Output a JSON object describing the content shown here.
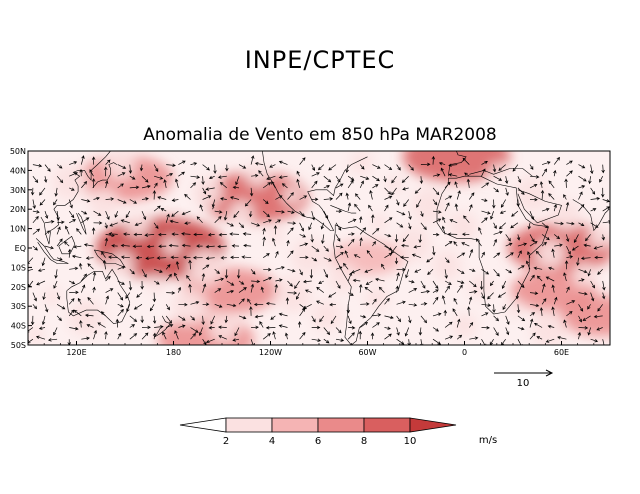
{
  "header": {
    "institution": "INPE/CPTEC",
    "title": "Anomalia de Vento em 850 hPa MAR2008"
  },
  "map": {
    "lat_labels": [
      "50N",
      "40N",
      "30N",
      "20N",
      "10N",
      "EQ",
      "10S",
      "20S",
      "30S",
      "40S",
      "50S"
    ],
    "lon_labels": [
      "120E",
      "180",
      "120W",
      "60W",
      "0",
      "60E"
    ],
    "lon_range_deg_east": [
      90,
      450
    ],
    "lat_range": [
      -50,
      50
    ],
    "reference_vector": {
      "label": "10",
      "magnitude": 10,
      "units": "m/s"
    }
  },
  "colorbar": {
    "boundaries": [
      "2",
      "4",
      "6",
      "8",
      "10"
    ],
    "units": "m/s",
    "colors": [
      "#ffffff",
      "#fbe1e1",
      "#f5b4b4",
      "#ea8a8a",
      "#d95f5f",
      "#c43a3a"
    ]
  },
  "anomaly_hotspots": [
    {
      "lon": 172,
      "lat": 0,
      "speed": 10
    },
    {
      "lon": 230,
      "lat": 26,
      "speed": 8
    },
    {
      "lon": 150,
      "lat": 36,
      "speed": 7
    },
    {
      "lon": 215,
      "lat": -22,
      "speed": 7
    },
    {
      "lon": 355,
      "lat": 47,
      "speed": 8
    },
    {
      "lon": 420,
      "lat": 0,
      "speed": 8
    },
    {
      "lon": 415,
      "lat": -22,
      "speed": 6
    },
    {
      "lon": 200,
      "lat": -47,
      "speed": 7
    },
    {
      "lon": 300,
      "lat": -5,
      "speed": 5
    },
    {
      "lon": 445,
      "lat": -35,
      "speed": 6
    }
  ]
}
